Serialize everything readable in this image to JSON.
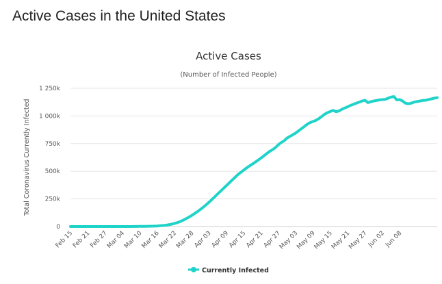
{
  "page": {
    "title": "Active Cases in the United States"
  },
  "chart_data": {
    "type": "line",
    "title": "Active Cases",
    "subtitle": "(Number of Infected People)",
    "xlabel": "",
    "ylabel": "Total Coronavirus Currently Infected",
    "ylim": [
      0,
      1250000
    ],
    "yticks": [
      0,
      250000,
      500000,
      750000,
      1000000,
      1250000
    ],
    "ytick_labels": [
      "0",
      "250k",
      "500k",
      "750k",
      "1 000k",
      "1 250k"
    ],
    "xtick_labels": [
      "Feb 15",
      "Feb 21",
      "Feb 27",
      "Mar 04",
      "Mar 10",
      "Mar 16",
      "Mar 22",
      "Mar 28",
      "Apr 03",
      "Apr 09",
      "Apr 15",
      "Apr 21",
      "Apr 27",
      "May 03",
      "May 09",
      "May 15",
      "May 21",
      "May 27",
      "Jun 02",
      "Jun 08"
    ],
    "grid": true,
    "legend_position": "bottom-center",
    "colors": {
      "series": "#1fd3c9"
    },
    "series": [
      {
        "name": "Currently Infected",
        "start_label": "Feb 15",
        "step_days": 1,
        "values": [
          0,
          0,
          0,
          0,
          0,
          0,
          0,
          0,
          0,
          0,
          0,
          0,
          0,
          0,
          0,
          0,
          0,
          0,
          0,
          100,
          200,
          300,
          500,
          700,
          1000,
          1500,
          2000,
          2500,
          3000,
          4000,
          5000,
          7000,
          9000,
          12000,
          16000,
          21000,
          27000,
          35000,
          45000,
          57000,
          70000,
          85000,
          100000,
          118000,
          135000,
          155000,
          175000,
          197000,
          220000,
          245000,
          270000,
          295000,
          320000,
          345000,
          370000,
          395000,
          420000,
          445000,
          470000,
          490000,
          510000,
          530000,
          548000,
          565000,
          582000,
          600000,
          620000,
          640000,
          660000,
          680000,
          695000,
          715000,
          740000,
          760000,
          775000,
          800000,
          815000,
          830000,
          845000,
          865000,
          885000,
          905000,
          925000,
          940000,
          950000,
          960000,
          975000,
          995000,
          1015000,
          1030000,
          1040000,
          1050000,
          1038000,
          1045000,
          1060000,
          1072000,
          1083000,
          1095000,
          1105000,
          1115000,
          1125000,
          1135000,
          1142000,
          1120000,
          1128000,
          1135000,
          1140000,
          1145000,
          1148000,
          1150000,
          1160000,
          1170000,
          1175000,
          1145000,
          1148000,
          1135000,
          1115000,
          1110000,
          1115000,
          1125000,
          1130000,
          1135000,
          1140000,
          1142000,
          1148000,
          1155000,
          1160000,
          1165000
        ]
      }
    ]
  }
}
